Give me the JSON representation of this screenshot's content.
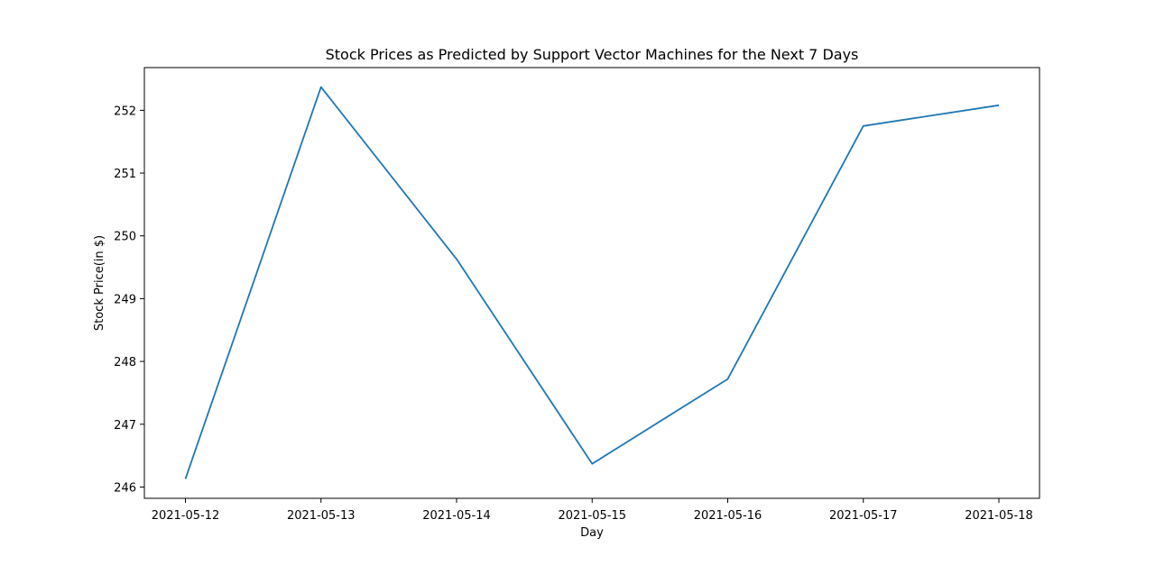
{
  "chart_data": {
    "type": "line",
    "title": "Stock Prices as Predicted by Support Vector Machines for the Next 7 Days",
    "xlabel": "Day",
    "ylabel": "Stock Price(in $)",
    "categories": [
      "2021-05-12",
      "2021-05-13",
      "2021-05-14",
      "2021-05-15",
      "2021-05-16",
      "2021-05-17",
      "2021-05-18"
    ],
    "series": [
      {
        "values": [
          246.13,
          252.37,
          249.63,
          246.37,
          247.72,
          251.75,
          252.08
        ],
        "color": "#1f77b4"
      }
    ],
    "yticks": [
      246,
      247,
      248,
      249,
      250,
      251,
      252
    ],
    "ylim": [
      245.82,
      252.68
    ],
    "grid": false,
    "legend": "none"
  }
}
